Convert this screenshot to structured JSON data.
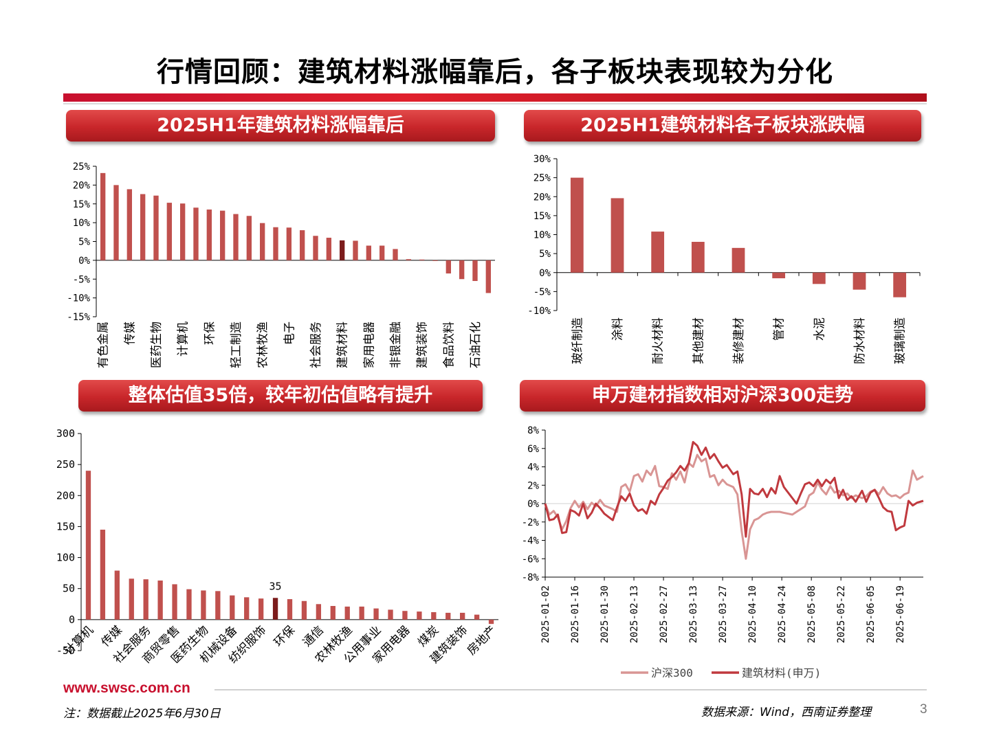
{
  "title": "行情回顾：建筑材料涨幅靠后，各子板块表现较为分化",
  "panels": {
    "p1": "2025H1年建筑材料涨幅靠后",
    "p2": "2025H1建筑材料各子板块涨跌幅",
    "p3": "整体估值35倍，较年初估值略有提升",
    "p4": "申万建材指数相对沪深300走势"
  },
  "footer": {
    "url": "www.swsc.com.cn",
    "note": "注：数据截止2025年6月30日",
    "source": "数据来源：Wind，西南证券整理",
    "page": "3"
  },
  "colors": {
    "bar": "#c0504d",
    "highlight": "#7b1c1c",
    "line_hs300": "#d99594",
    "line_jc": "#c0393e",
    "banner": "#c8262a"
  },
  "chart_data": [
    {
      "type": "bar",
      "yticks": [
        "25%",
        "20%",
        "15%",
        "10%",
        "5%",
        "0%",
        "-5%",
        "-10%",
        "-15%"
      ],
      "ylim": [
        -15,
        25
      ],
      "categories": [
        "有色金属",
        "",
        "传媒",
        "",
        "医药生物",
        "",
        "计算机",
        "",
        "环保",
        "",
        "轻工制造",
        "",
        "农林牧渔",
        "",
        "电子",
        "",
        "社会服务",
        "",
        "建筑材料",
        "",
        "家用电器",
        "",
        "非银金融",
        "",
        "建筑装饰",
        "",
        "食品饮料",
        "",
        "石油石化",
        ""
      ],
      "values": [
        23.2,
        20.0,
        18.9,
        17.6,
        17.2,
        15.3,
        15.1,
        14.0,
        13.5,
        13.2,
        12.3,
        11.8,
        9.9,
        8.8,
        8.7,
        8.0,
        6.5,
        6.0,
        5.3,
        5.2,
        3.9,
        3.9,
        3.0,
        0.3,
        0.2,
        -0.1,
        -3.5,
        -5.0,
        -5.5,
        -8.7
      ],
      "highlight_index": 18
    },
    {
      "type": "bar",
      "yticks": [
        "30%",
        "25%",
        "20%",
        "15%",
        "10%",
        "5%",
        "0%",
        "-5%",
        "-10%"
      ],
      "ylim": [
        -10,
        30
      ],
      "categories": [
        "玻纤制造",
        "涂料",
        "耐火材料",
        "其他建材",
        "装修建材",
        "管材",
        "水泥",
        "防水材料",
        "玻璃制造"
      ],
      "values": [
        25.0,
        19.6,
        10.8,
        8.1,
        6.5,
        -1.5,
        -3.0,
        -4.5,
        -6.5
      ]
    },
    {
      "type": "bar",
      "yticks": [
        "300",
        "250",
        "200",
        "150",
        "100",
        "50",
        "0",
        "-50"
      ],
      "ylim": [
        -50,
        300
      ],
      "categories": [
        "计算机",
        "",
        "传媒",
        "",
        "社会服务",
        "",
        "商贸零售",
        "",
        "医药生物",
        "",
        "机械设备",
        "",
        "纺织服饰",
        "",
        "环保",
        "",
        "通信",
        "",
        "农林牧渔",
        "",
        "公用事业",
        "",
        "家用电器",
        "",
        "煤炭",
        "",
        "建筑装饰",
        "",
        "房地产"
      ],
      "values": [
        240,
        145,
        79,
        66,
        65,
        63,
        57,
        49,
        47,
        46,
        39,
        36,
        34,
        35,
        33,
        30,
        25,
        22,
        21,
        21,
        18,
        16,
        14,
        13,
        12,
        11,
        11,
        8,
        -7
      ],
      "highlight_index": 13,
      "highlight_label": "35"
    },
    {
      "type": "line",
      "yticks": [
        "8%",
        "6%",
        "4%",
        "2%",
        "0%",
        "-2%",
        "-4%",
        "-6%",
        "-8%"
      ],
      "ylim": [
        -8,
        8
      ],
      "x_range": [
        "2025-01-02",
        "2025-06-30"
      ],
      "xticks": [
        "2025-01-02",
        "2025-01-16",
        "2025-01-30",
        "2025-02-13",
        "2025-02-27",
        "2025-03-13",
        "2025-03-27",
        "2025-04-10",
        "2025-04-24",
        "2025-05-08",
        "2025-05-22",
        "2025-06-05",
        "2025-06-19"
      ],
      "series": [
        {
          "name": "沪深300",
          "points": [
            [
              "2025-01-02",
              0
            ],
            [
              "2025-01-04",
              -1.2
            ],
            [
              "2025-01-06",
              -0.8
            ],
            [
              "2025-01-08",
              -1.5
            ],
            [
              "2025-01-10",
              -2.8
            ],
            [
              "2025-01-12",
              -1.9
            ],
            [
              "2025-01-14",
              -0.5
            ],
            [
              "2025-01-16",
              0.3
            ],
            [
              "2025-01-18",
              -0.4
            ],
            [
              "2025-01-20",
              0.2
            ],
            [
              "2025-01-22",
              -0.6
            ],
            [
              "2025-01-24",
              0.1
            ],
            [
              "2025-01-26",
              -0.3
            ],
            [
              "2025-01-28",
              0.4
            ],
            [
              "2025-01-30",
              -0.2
            ],
            [
              "2025-02-03",
              -0.6
            ],
            [
              "2025-02-05",
              -0.9
            ],
            [
              "2025-02-07",
              1.8
            ],
            [
              "2025-02-09",
              2.1
            ],
            [
              "2025-02-11",
              1.3
            ],
            [
              "2025-02-13",
              3.0
            ],
            [
              "2025-02-15",
              3.2
            ],
            [
              "2025-02-17",
              2.4
            ],
            [
              "2025-02-19",
              3.6
            ],
            [
              "2025-02-21",
              3.1
            ],
            [
              "2025-02-23",
              4.1
            ],
            [
              "2025-02-25",
              1.9
            ],
            [
              "2025-02-27",
              1.8
            ],
            [
              "2025-03-01",
              1.6
            ],
            [
              "2025-03-03",
              3.3
            ],
            [
              "2025-03-05",
              2.6
            ],
            [
              "2025-03-07",
              3.5
            ],
            [
              "2025-03-09",
              2.3
            ],
            [
              "2025-03-11",
              4.4
            ],
            [
              "2025-03-13",
              4.0
            ],
            [
              "2025-03-15",
              5.3
            ],
            [
              "2025-03-17",
              4.6
            ],
            [
              "2025-03-19",
              4.9
            ],
            [
              "2025-03-21",
              2.9
            ],
            [
              "2025-03-23",
              3.1
            ],
            [
              "2025-03-25",
              2.0
            ],
            [
              "2025-03-27",
              2.6
            ],
            [
              "2025-03-29",
              2.1
            ],
            [
              "2025-04-01",
              1.8
            ],
            [
              "2025-04-03",
              1.0
            ],
            [
              "2025-04-05",
              -3.0
            ],
            [
              "2025-04-07",
              -6.0
            ],
            [
              "2025-04-09",
              -2.8
            ],
            [
              "2025-04-11",
              -1.8
            ],
            [
              "2025-04-13",
              -1.6
            ],
            [
              "2025-04-15",
              -1.2
            ],
            [
              "2025-04-17",
              -1.0
            ],
            [
              "2025-04-19",
              -0.9
            ],
            [
              "2025-04-21",
              -0.9
            ],
            [
              "2025-04-23",
              -0.9
            ],
            [
              "2025-04-25",
              -1.0
            ],
            [
              "2025-04-27",
              -1.1
            ],
            [
              "2025-04-29",
              -1.2
            ],
            [
              "2025-05-01",
              -0.9
            ],
            [
              "2025-05-03",
              -0.6
            ],
            [
              "2025-05-05",
              -0.3
            ],
            [
              "2025-05-07",
              0.9
            ],
            [
              "2025-05-09",
              1.2
            ],
            [
              "2025-05-11",
              2.3
            ],
            [
              "2025-05-13",
              1.5
            ],
            [
              "2025-05-15",
              1.0
            ],
            [
              "2025-05-17",
              1.9
            ],
            [
              "2025-05-19",
              1.2
            ],
            [
              "2025-05-21",
              1.4
            ],
            [
              "2025-05-23",
              0.9
            ],
            [
              "2025-05-25",
              1.1
            ],
            [
              "2025-05-27",
              0.6
            ],
            [
              "2025-05-29",
              0.9
            ],
            [
              "2025-06-01",
              0.6
            ],
            [
              "2025-06-03",
              0.8
            ],
            [
              "2025-06-05",
              1.3
            ],
            [
              "2025-06-07",
              1.5
            ],
            [
              "2025-06-09",
              1.0
            ],
            [
              "2025-06-11",
              1.8
            ],
            [
              "2025-06-13",
              1.1
            ],
            [
              "2025-06-15",
              0.8
            ],
            [
              "2025-06-17",
              0.9
            ],
            [
              "2025-06-19",
              0.6
            ],
            [
              "2025-06-21",
              1.0
            ],
            [
              "2025-06-23",
              1.2
            ],
            [
              "2025-06-25",
              3.6
            ],
            [
              "2025-06-27",
              2.6
            ],
            [
              "2025-06-30",
              3.0
            ]
          ]
        },
        {
          "name": "建筑材料(申万)",
          "points": [
            [
              "2025-01-02",
              0
            ],
            [
              "2025-01-04",
              -1.8
            ],
            [
              "2025-01-06",
              -1.7
            ],
            [
              "2025-01-08",
              -1.2
            ],
            [
              "2025-01-10",
              -3.2
            ],
            [
              "2025-01-12",
              -3.1
            ],
            [
              "2025-01-14",
              -0.7
            ],
            [
              "2025-01-16",
              -0.9
            ],
            [
              "2025-01-18",
              -1.3
            ],
            [
              "2025-01-20",
              0.0
            ],
            [
              "2025-01-22",
              -1.6
            ],
            [
              "2025-01-24",
              -1.0
            ],
            [
              "2025-01-26",
              0.0
            ],
            [
              "2025-01-28",
              -0.5
            ],
            [
              "2025-01-30",
              -1.1
            ],
            [
              "2025-02-03",
              -1.8
            ],
            [
              "2025-02-05",
              -0.4
            ],
            [
              "2025-02-07",
              0.8
            ],
            [
              "2025-02-09",
              0.3
            ],
            [
              "2025-02-11",
              1.1
            ],
            [
              "2025-02-13",
              -0.2
            ],
            [
              "2025-02-15",
              -0.8
            ],
            [
              "2025-02-17",
              -0.6
            ],
            [
              "2025-02-19",
              -1.1
            ],
            [
              "2025-02-21",
              0.3
            ],
            [
              "2025-02-23",
              -0.1
            ],
            [
              "2025-02-25",
              1.0
            ],
            [
              "2025-02-27",
              1.7
            ],
            [
              "2025-03-01",
              2.5
            ],
            [
              "2025-03-03",
              2.9
            ],
            [
              "2025-03-05",
              3.4
            ],
            [
              "2025-03-07",
              4.1
            ],
            [
              "2025-03-09",
              3.6
            ],
            [
              "2025-03-11",
              4.4
            ],
            [
              "2025-03-13",
              6.7
            ],
            [
              "2025-03-15",
              6.3
            ],
            [
              "2025-03-17",
              5.3
            ],
            [
              "2025-03-19",
              6.1
            ],
            [
              "2025-03-21",
              4.9
            ],
            [
              "2025-03-23",
              5.4
            ],
            [
              "2025-03-25",
              4.6
            ],
            [
              "2025-03-27",
              3.9
            ],
            [
              "2025-03-29",
              4.2
            ],
            [
              "2025-04-01",
              3.2
            ],
            [
              "2025-04-03",
              3.5
            ],
            [
              "2025-04-05",
              1.0
            ],
            [
              "2025-04-07",
              -3.6
            ],
            [
              "2025-04-09",
              1.6
            ],
            [
              "2025-04-11",
              1.1
            ],
            [
              "2025-04-13",
              1.0
            ],
            [
              "2025-04-15",
              1.6
            ],
            [
              "2025-04-17",
              0.7
            ],
            [
              "2025-04-19",
              1.7
            ],
            [
              "2025-04-21",
              1.1
            ],
            [
              "2025-04-23",
              3.0
            ],
            [
              "2025-04-25",
              1.8
            ],
            [
              "2025-04-27",
              1.2
            ],
            [
              "2025-04-29",
              0.6
            ],
            [
              "2025-05-01",
              0.0
            ],
            [
              "2025-05-03",
              1.1
            ],
            [
              "2025-05-05",
              2.1
            ],
            [
              "2025-05-07",
              2.3
            ],
            [
              "2025-05-09",
              1.9
            ],
            [
              "2025-05-11",
              2.6
            ],
            [
              "2025-05-13",
              1.9
            ],
            [
              "2025-05-15",
              2.6
            ],
            [
              "2025-05-17",
              2.2
            ],
            [
              "2025-05-19",
              2.8
            ],
            [
              "2025-05-21",
              0.6
            ],
            [
              "2025-05-23",
              1.5
            ],
            [
              "2025-05-25",
              0.4
            ],
            [
              "2025-05-27",
              0.8
            ],
            [
              "2025-05-29",
              0.2
            ],
            [
              "2025-06-01",
              1.4
            ],
            [
              "2025-06-03",
              0.2
            ],
            [
              "2025-06-05",
              1.2
            ],
            [
              "2025-06-07",
              1.5
            ],
            [
              "2025-06-09",
              0.6
            ],
            [
              "2025-06-11",
              -0.4
            ],
            [
              "2025-06-13",
              -0.8
            ],
            [
              "2025-06-15",
              -0.9
            ],
            [
              "2025-06-17",
              -2.9
            ],
            [
              "2025-06-19",
              -2.6
            ],
            [
              "2025-06-21",
              -2.4
            ],
            [
              "2025-06-23",
              0.3
            ],
            [
              "2025-06-25",
              -0.2
            ],
            [
              "2025-06-27",
              0.1
            ],
            [
              "2025-06-30",
              0.3
            ]
          ]
        }
      ]
    }
  ]
}
